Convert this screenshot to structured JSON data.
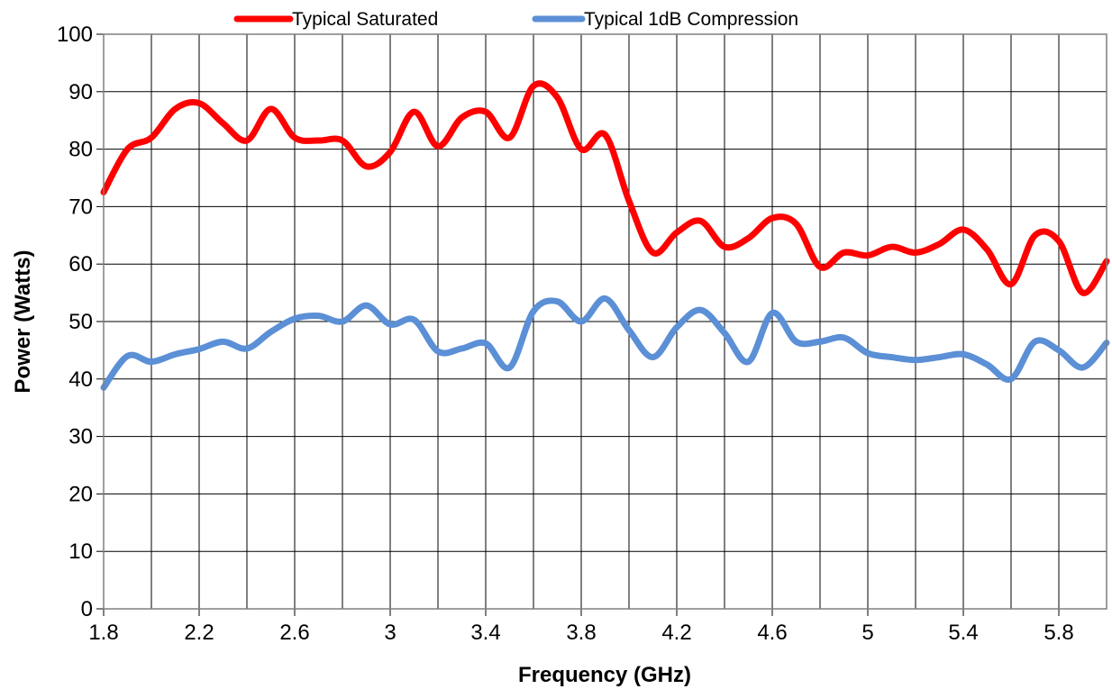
{
  "chart_data": {
    "type": "line",
    "xlabel": "Frequency (GHz)",
    "ylabel": "Power (Watts)",
    "xlim": [
      1.8,
      6.0
    ],
    "ylim": [
      0,
      100
    ],
    "x_ticks": [
      "1.8",
      "2.2",
      "2.6",
      "3",
      "3.4",
      "3.8",
      "4.2",
      "4.6",
      "5",
      "5.4",
      "5.8"
    ],
    "x_tick_values": [
      1.8,
      2.2,
      2.6,
      3.0,
      3.4,
      3.8,
      4.2,
      4.6,
      5.0,
      5.4,
      5.8
    ],
    "y_ticks": [
      "0",
      "10",
      "20",
      "30",
      "40",
      "50",
      "60",
      "70",
      "80",
      "90",
      "100"
    ],
    "y_tick_values": [
      0,
      10,
      20,
      30,
      40,
      50,
      60,
      70,
      80,
      90,
      100
    ],
    "grid": true,
    "legend_position": "top",
    "x": [
      1.8,
      1.9,
      2.0,
      2.1,
      2.2,
      2.3,
      2.4,
      2.5,
      2.6,
      2.7,
      2.8,
      2.9,
      3.0,
      3.1,
      3.2,
      3.3,
      3.4,
      3.5,
      3.6,
      3.7,
      3.8,
      3.9,
      4.0,
      4.1,
      4.2,
      4.3,
      4.4,
      4.5,
      4.6,
      4.7,
      4.8,
      4.9,
      5.0,
      5.1,
      5.2,
      5.3,
      5.4,
      5.5,
      5.6,
      5.7,
      5.8,
      5.9,
      6.0
    ],
    "series": [
      {
        "name": "Typical Saturated",
        "color": "#ff0000",
        "values": [
          72.5,
          80,
          82,
          87,
          88,
          84.5,
          81.5,
          87,
          82,
          81.5,
          81.5,
          77,
          79.5,
          86.5,
          80.5,
          85.5,
          86.5,
          82,
          91,
          89,
          80,
          82.5,
          71,
          62,
          65.5,
          67.5,
          63,
          64.5,
          68,
          67,
          59.5,
          62,
          61.5,
          63,
          62,
          63.5,
          66,
          62.5,
          56.5,
          65,
          64,
          55,
          60.5
        ]
      },
      {
        "name": "Typical 1dB Compression",
        "color": "#5b8fd6",
        "values": [
          38.5,
          44,
          43,
          44.3,
          45.2,
          46.5,
          45.3,
          48.2,
          50.5,
          51,
          50,
          52.8,
          49.5,
          50.3,
          44.8,
          45.3,
          46.2,
          42,
          51.8,
          53.5,
          50,
          54,
          48.5,
          43.8,
          49,
          52,
          48,
          43,
          51.5,
          46.5,
          46.5,
          47.2,
          44.5,
          43.8,
          43.3,
          43.8,
          44.3,
          42.5,
          40,
          46.5,
          45,
          42,
          46.3
        ]
      }
    ]
  }
}
